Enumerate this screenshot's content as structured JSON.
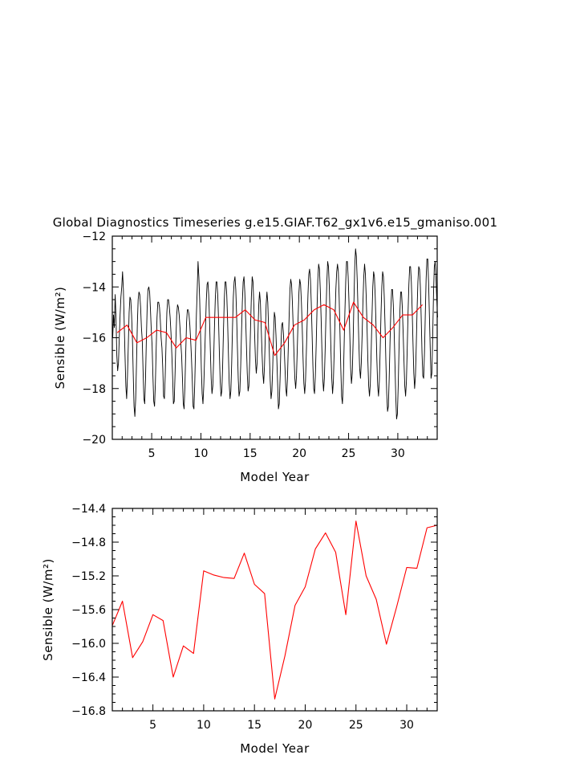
{
  "chart_data": [
    {
      "type": "line",
      "title": "Global Diagnostics Timeseries g.e15.GIAF.T62_gx1v6.e15_gmaniso.001",
      "xlabel": "Model Year",
      "ylabel": "Sensible (W/m²)",
      "xlim": [
        1,
        34
      ],
      "ylim": [
        -20,
        -12
      ],
      "xticks": [
        5,
        10,
        15,
        20,
        25,
        30
      ],
      "xtick_labels": [
        "5",
        "10",
        "15",
        "20",
        "25",
        "30"
      ],
      "yticks": [
        -20,
        -18,
        -16,
        -14,
        -12
      ],
      "ytick_labels": [
        "−20",
        "−18",
        "−16",
        "−14",
        "−12"
      ],
      "grid": false,
      "series": [
        {
          "color": "#000000",
          "x_start": 1.0417,
          "x_step": 0.083333,
          "values": [
            -16.0,
            -15.1,
            -15.6,
            -14.3,
            -15.2,
            -16.7,
            -17.3,
            -17.0,
            -16.0,
            -15.1,
            -14.4,
            -14.0,
            -13.4,
            -14.1,
            -15.4,
            -16.7,
            -17.9,
            -18.4,
            -17.5,
            -16.3,
            -15.0,
            -14.4,
            -14.5,
            -15.1,
            -16.0,
            -17.4,
            -18.7,
            -19.1,
            -18.4,
            -17.0,
            -15.5,
            -14.5,
            -14.2,
            -14.3,
            -14.8,
            -15.6,
            -16.1,
            -17.3,
            -18.4,
            -18.6,
            -17.6,
            -16.1,
            -14.8,
            -14.1,
            -14.0,
            -14.2,
            -14.9,
            -15.7,
            -16.3,
            -17.5,
            -18.5,
            -18.7,
            -17.8,
            -16.4,
            -15.2,
            -14.6,
            -14.6,
            -14.8,
            -15.3,
            -16.0,
            -16.4,
            -17.2,
            -18.3,
            -18.4,
            -17.5,
            -16.2,
            -15.0,
            -14.5,
            -14.5,
            -14.8,
            -15.2,
            -15.8,
            -16.6,
            -17.5,
            -18.6,
            -18.5,
            -17.4,
            -16.1,
            -15.1,
            -14.7,
            -14.8,
            -15.1,
            -15.6,
            -16.2,
            -16.7,
            -17.6,
            -18.6,
            -18.8,
            -17.9,
            -16.6,
            -15.4,
            -14.9,
            -14.9,
            -15.1,
            -15.5,
            -16.1,
            -16.8,
            -17.7,
            -18.7,
            -18.8,
            -17.8,
            -16.4,
            -15.1,
            -14.1,
            -13.0,
            -13.6,
            -14.5,
            -15.8,
            -17.2,
            -18.2,
            -18.6,
            -17.9,
            -16.8,
            -15.7,
            -14.6,
            -13.9,
            -13.8,
            -14.3,
            -15.3,
            -16.5,
            -17.6,
            -18.2,
            -17.9,
            -16.9,
            -15.6,
            -14.5,
            -13.8,
            -13.8,
            -14.3,
            -15.3,
            -16.6,
            -17.7,
            -18.3,
            -18.1,
            -17.1,
            -15.7,
            -14.5,
            -13.8,
            -13.8,
            -14.3,
            -15.3,
            -16.6,
            -17.8,
            -18.4,
            -18.1,
            -17.0,
            -15.6,
            -14.4,
            -13.8,
            -13.6,
            -14.1,
            -15.1,
            -16.4,
            -17.6,
            -18.3,
            -18.1,
            -17.1,
            -15.8,
            -14.6,
            -13.8,
            -13.6,
            -14.2,
            -15.2,
            -16.3,
            -17.4,
            -18.1,
            -17.9,
            -16.9,
            -15.6,
            -14.4,
            -13.6,
            -13.8,
            -14.7,
            -15.9,
            -16.9,
            -17.4,
            -17.0,
            -15.9,
            -14.7,
            -14.2,
            -14.6,
            -15.6,
            -16.6,
            -17.4,
            -17.8,
            -17.1,
            -15.9,
            -14.7,
            -14.2,
            -14.6,
            -15.6,
            -16.7,
            -17.7,
            -18.4,
            -18.1,
            -17.2,
            -15.9,
            -15.0,
            -15.2,
            -15.9,
            -16.8,
            -17.8,
            -18.8,
            -18.6,
            -17.6,
            -16.4,
            -15.5,
            -15.4,
            -15.8,
            -16.4,
            -17.2,
            -18.0,
            -18.3,
            -17.6,
            -16.4,
            -15.2,
            -14.1,
            -13.7,
            -13.9,
            -14.6,
            -15.6,
            -16.7,
            -17.6,
            -18.0,
            -17.5,
            -16.4,
            -15.2,
            -14.2,
            -13.7,
            -13.9,
            -14.6,
            -15.6,
            -16.8,
            -17.8,
            -18.2,
            -17.7,
            -16.6,
            -15.4,
            -14.3,
            -13.5,
            -13.3,
            -13.7,
            -14.6,
            -15.8,
            -17.1,
            -18.0,
            -18.2,
            -17.5,
            -16.3,
            -14.9,
            -13.7,
            -13.1,
            -13.3,
            -14.1,
            -15.2,
            -16.5,
            -17.6,
            -18.1,
            -17.6,
            -16.4,
            -15.0,
            -13.8,
            -13.0,
            -13.2,
            -14.0,
            -15.2,
            -16.5,
            -17.6,
            -18.2,
            -17.7,
            -16.5,
            -15.2,
            -14.1,
            -13.4,
            -13.1,
            -13.4,
            -14.4,
            -15.8,
            -17.2,
            -18.3,
            -18.6,
            -17.8,
            -16.4,
            -15.0,
            -13.8,
            -13.0,
            -13.0,
            -13.6,
            -14.6,
            -15.9,
            -17.2,
            -17.8,
            -17.4,
            -16.2,
            -14.6,
            -13.2,
            -12.5,
            -12.8,
            -13.7,
            -14.9,
            -16.2,
            -17.2,
            -17.6,
            -17.0,
            -15.9,
            -14.6,
            -13.6,
            -13.1,
            -13.5,
            -14.4,
            -15.6,
            -16.9,
            -17.9,
            -18.3,
            -17.8,
            -16.6,
            -15.2,
            -14.0,
            -13.4,
            -13.6,
            -14.4,
            -15.6,
            -16.9,
            -17.9,
            -18.3,
            -17.7,
            -16.5,
            -15.1,
            -14.0,
            -13.4,
            -13.6,
            -14.4,
            -15.6,
            -17.0,
            -18.2,
            -18.9,
            -18.7,
            -17.6,
            -16.2,
            -14.9,
            -14.1,
            -14.1,
            -14.7,
            -15.7,
            -17.0,
            -18.3,
            -19.2,
            -19.0,
            -17.9,
            -16.4,
            -15.0,
            -14.2,
            -14.2,
            -14.8,
            -15.8,
            -16.9,
            -17.9,
            -18.3,
            -17.7,
            -16.4,
            -15.0,
            -13.9,
            -13.2,
            -13.2,
            -13.8,
            -14.9,
            -16.2,
            -17.4,
            -18.0,
            -17.5,
            -16.3,
            -14.9,
            -13.8,
            -13.2,
            -13.3,
            -14.0,
            -15.2,
            -16.6,
            -17.5,
            -17.6,
            -16.6,
            -15.1,
            -13.7,
            -12.9,
            -12.9,
            -13.8,
            -15.1,
            -16.4,
            -17.6,
            -17.4,
            -16.0,
            -14.3,
            -13.2,
            -13.0,
            -13.6,
            -14.5,
            -15.2
          ]
        },
        {
          "color": "#ff0000",
          "x": [
            1.5,
            2.5,
            3.5,
            4.5,
            5.5,
            6.5,
            7.5,
            8.5,
            9.5,
            10.5,
            11.5,
            12.5,
            13.5,
            14.5,
            15.5,
            16.5,
            17.5,
            18.5,
            19.5,
            20.5,
            21.5,
            22.5,
            23.5,
            24.5,
            25.5,
            26.5,
            27.5,
            28.5,
            29.5,
            30.5,
            31.5,
            32.5
          ],
          "values": [
            -15.8,
            -15.5,
            -16.2,
            -16.0,
            -15.7,
            -15.8,
            -16.4,
            -16.0,
            -16.1,
            -15.2,
            -15.2,
            -15.2,
            -15.2,
            -14.9,
            -15.3,
            -15.4,
            -16.7,
            -16.2,
            -15.5,
            -15.3,
            -14.9,
            -14.7,
            -14.9,
            -15.7,
            -14.6,
            -15.2,
            -15.5,
            -16.0,
            -15.6,
            -15.1,
            -15.1,
            -14.7
          ]
        }
      ]
    },
    {
      "type": "line",
      "xlabel": "Model Year",
      "ylabel": "Sensible (W/m²)",
      "xlim": [
        1,
        33
      ],
      "ylim": [
        -16.8,
        -14.4
      ],
      "xticks": [
        5,
        10,
        15,
        20,
        25,
        30
      ],
      "xtick_labels": [
        "5",
        "10",
        "15",
        "20",
        "25",
        "30"
      ],
      "yticks": [
        -16.8,
        -16.4,
        -16.0,
        -15.6,
        -15.2,
        -14.8,
        -14.4
      ],
      "ytick_labels": [
        "−16.8",
        "−16.4",
        "−16.0",
        "−15.6",
        "−15.2",
        "−14.8",
        "−14.4"
      ],
      "grid": false,
      "series": [
        {
          "color": "#ff0000",
          "x": [
            1.0,
            2.0,
            3.0,
            4.0,
            5.0,
            6.0,
            7.0,
            8.0,
            9.0,
            10.0,
            11.0,
            12.0,
            13.0,
            14.0,
            15.0,
            16.0,
            17.0,
            18.0,
            19.0,
            20.0,
            21.0,
            22.0,
            23.0,
            24.0,
            25.0,
            26.0,
            27.0,
            28.0,
            29.0,
            30.0,
            31.0,
            32.0,
            33.0
          ],
          "values": [
            -15.79,
            -15.5,
            -16.17,
            -15.98,
            -15.66,
            -15.73,
            -16.4,
            -16.03,
            -16.12,
            -15.14,
            -15.19,
            -15.22,
            -15.23,
            -14.93,
            -15.3,
            -15.41,
            -16.66,
            -16.15,
            -15.55,
            -15.33,
            -14.88,
            -14.69,
            -14.92,
            -15.66,
            -14.55,
            -15.2,
            -15.48,
            -16.01,
            -15.57,
            -15.1,
            -15.11,
            -14.63,
            -14.6
          ]
        }
      ]
    }
  ]
}
